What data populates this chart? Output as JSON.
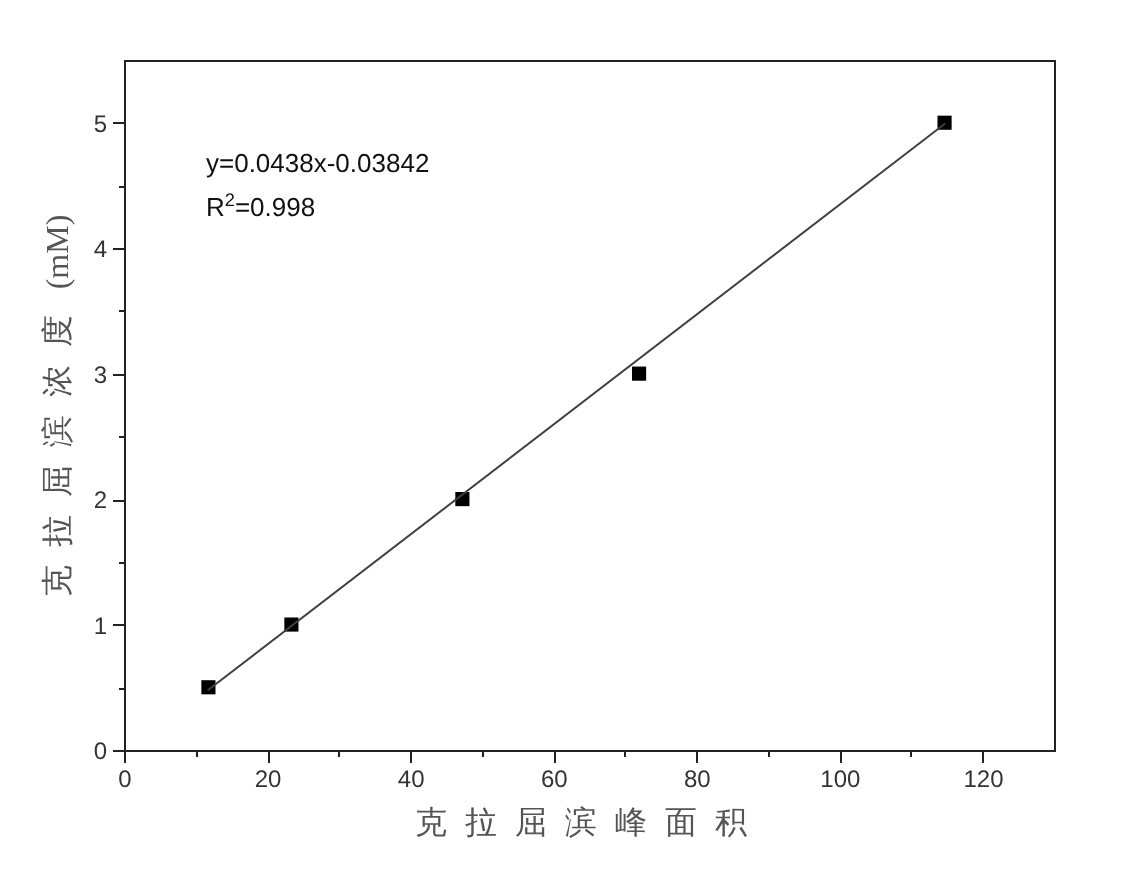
{
  "chart_data": {
    "type": "scatter",
    "xlabel": "克拉屈滨峰面积",
    "ylabel": "克拉屈滨浓度 (mM)",
    "annotations": [
      "y=0.0438x-0.03842",
      "R$^{2}$=0.998"
    ],
    "x": [
      11.8,
      23.4,
      47.3,
      72.0,
      114.7
    ],
    "series": [
      {
        "color": "#000000",
        "marker": "square",
        "values": [
          0.5,
          1,
          2,
          3,
          5
        ]
      },
      {
        "type": "line",
        "color": "#404040",
        "x": [
          11.8,
          114.7
        ],
        "values": [
          0.48,
          4.99
        ]
      }
    ],
    "xlim": [
      0,
      130
    ],
    "ylim": [
      0,
      5.5
    ],
    "xticks": [
      0,
      {
        "value": 10,
        "label": null
      },
      20,
      {
        "value": 30,
        "label": null
      },
      40,
      {
        "value": 50,
        "label": null
      },
      60,
      {
        "value": 70,
        "label": null
      },
      80,
      {
        "value": 90,
        "label": null
      },
      100,
      {
        "value": 110,
        "label": null
      },
      120
    ],
    "yticks": [
      0,
      {
        "value": 0.5,
        "label": null
      },
      1,
      {
        "value": 1.5,
        "label": null
      },
      2,
      {
        "value": 2.5,
        "label": null
      },
      3,
      {
        "value": 3.5,
        "label": null
      },
      4,
      {
        "value": 4.5,
        "label": null
      },
      5
    ]
  }
}
